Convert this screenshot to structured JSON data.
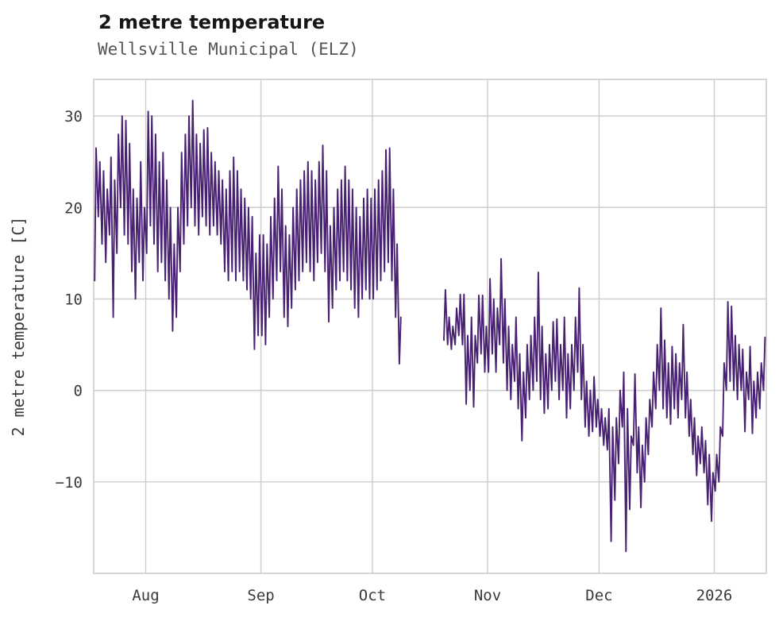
{
  "chart_data": {
    "type": "line",
    "title": "2 metre temperature",
    "subtitle": "Wellsville Municipal (ELZ)",
    "ylabel": "2 metre temperature [C]",
    "series_name": "2 metre temperature",
    "line_color": "#482173",
    "grid_color": "#cccccc",
    "axis_text_color": "#3a3a3a",
    "background_color": "#ffffff",
    "legend": "none",
    "grid": "on",
    "ylim": [
      -20,
      34
    ],
    "yticks": [
      {
        "label": "−10",
        "value": -10
      },
      {
        "label": "0",
        "value": 0
      },
      {
        "label": "10",
        "value": 10
      },
      {
        "label": "20",
        "value": 20
      },
      {
        "label": "30",
        "value": 30
      }
    ],
    "x_axis": {
      "start_date": "Jul 18",
      "end_date": "Jan 15",
      "total_days": 181,
      "ticks": [
        {
          "label": "Aug",
          "day": 14
        },
        {
          "label": "Sep",
          "day": 45
        },
        {
          "label": "Oct",
          "day": 75
        },
        {
          "label": "Nov",
          "day": 106
        },
        {
          "label": "Dec",
          "day": 136
        },
        {
          "label": "2026",
          "day": 167
        }
      ]
    },
    "daily_min_max": [
      [
        12,
        26.5
      ],
      [
        19,
        25
      ],
      [
        16,
        24
      ],
      [
        14,
        22
      ],
      [
        17,
        25.5
      ],
      [
        8,
        23
      ],
      [
        15,
        28
      ],
      [
        20,
        30
      ],
      [
        17,
        29.5
      ],
      [
        16,
        27
      ],
      [
        13,
        22
      ],
      [
        10,
        21
      ],
      [
        14,
        25
      ],
      [
        12,
        20
      ],
      [
        15,
        30.5
      ],
      [
        18,
        30
      ],
      [
        16,
        28
      ],
      [
        13,
        25
      ],
      [
        14,
        26
      ],
      [
        12,
        23
      ],
      [
        10,
        20
      ],
      [
        6.5,
        16
      ],
      [
        8,
        20
      ],
      [
        13,
        26
      ],
      [
        16,
        28
      ],
      [
        18,
        30
      ],
      [
        20,
        31.7
      ],
      [
        18,
        28
      ],
      [
        17,
        27
      ],
      [
        19,
        28.5
      ],
      [
        18,
        28.7
      ],
      [
        17,
        26
      ],
      [
        18,
        25
      ],
      [
        17,
        24
      ],
      [
        16,
        23
      ],
      [
        13,
        22
      ],
      [
        12,
        24
      ],
      [
        13,
        25.5
      ],
      [
        12,
        24
      ],
      [
        13,
        22
      ],
      [
        12,
        21
      ],
      [
        11,
        20
      ],
      [
        10,
        19
      ],
      [
        4.5,
        15
      ],
      [
        6,
        17
      ],
      [
        6,
        17
      ],
      [
        5,
        16
      ],
      [
        8,
        19
      ],
      [
        10,
        21
      ],
      [
        12,
        24.5
      ],
      [
        13,
        22
      ],
      [
        8,
        18
      ],
      [
        7,
        17
      ],
      [
        9,
        20
      ],
      [
        11,
        22
      ],
      [
        12,
        23
      ],
      [
        13,
        24
      ],
      [
        14,
        25
      ],
      [
        13,
        24
      ],
      [
        12,
        23
      ],
      [
        14,
        25
      ],
      [
        15,
        26.8
      ],
      [
        13,
        24
      ],
      [
        7.5,
        18
      ],
      [
        9,
        20
      ],
      [
        11,
        22
      ],
      [
        12,
        23
      ],
      [
        13,
        24.5
      ],
      [
        12,
        23
      ],
      [
        11,
        22
      ],
      [
        9,
        20
      ],
      [
        8,
        19
      ],
      [
        10,
        21
      ],
      [
        11,
        22
      ],
      [
        10,
        21
      ],
      [
        10,
        22
      ],
      [
        11,
        23
      ],
      [
        12,
        24
      ],
      [
        13,
        26.3
      ],
      [
        14,
        26.5
      ],
      [
        12,
        22
      ],
      [
        8,
        16
      ],
      [
        2.9,
        8
      ],
      null,
      null,
      null,
      null,
      null,
      null,
      null,
      null,
      null,
      null,
      null,
      [
        5.5,
        11
      ],
      [
        5,
        8
      ],
      [
        4.5,
        7
      ],
      [
        5,
        9
      ],
      [
        6,
        10.5
      ],
      [
        5,
        10.5
      ],
      [
        -1.5,
        6
      ],
      [
        0,
        8
      ],
      [
        -1.8,
        6
      ],
      [
        3,
        10.4
      ],
      [
        4,
        10.4
      ],
      [
        2,
        7
      ],
      [
        2,
        12.2
      ],
      [
        4,
        10
      ],
      [
        2,
        9
      ],
      [
        5,
        14.4
      ],
      [
        3,
        10
      ],
      [
        0,
        7
      ],
      [
        -1,
        5
      ],
      [
        1,
        8
      ],
      [
        -2,
        4
      ],
      [
        -5.5,
        2
      ],
      [
        -3,
        5
      ],
      [
        -1,
        6
      ],
      [
        0,
        8
      ],
      [
        1,
        12.9
      ],
      [
        -1,
        7
      ],
      [
        -2.5,
        4
      ],
      [
        -2,
        5
      ],
      [
        0,
        7.5
      ],
      [
        1,
        7.8
      ],
      [
        -1,
        5
      ],
      [
        0,
        8
      ],
      [
        -3,
        4
      ],
      [
        -2,
        5
      ],
      [
        0,
        8
      ],
      [
        2,
        11.2
      ],
      [
        -1,
        5
      ],
      [
        -4,
        1
      ],
      [
        -5,
        0
      ],
      [
        -4.5,
        1.5
      ],
      [
        -4,
        -1
      ],
      [
        -5,
        -2
      ],
      [
        -6,
        -3
      ],
      [
        -6.5,
        -2
      ],
      [
        -16.5,
        -4
      ],
      [
        -12,
        -3
      ],
      [
        -8,
        0
      ],
      [
        -4,
        2
      ],
      [
        -17.6,
        -2
      ],
      [
        -13,
        -5
      ],
      [
        -6,
        1.8
      ],
      [
        -9,
        -4
      ],
      [
        -12.8,
        -6
      ],
      [
        -10,
        -3
      ],
      [
        -7,
        -1
      ],
      [
        -4,
        2
      ],
      [
        -2,
        5
      ],
      [
        0,
        9
      ],
      [
        -2,
        5.5
      ],
      [
        -3,
        3
      ],
      [
        -3.7,
        4.8
      ],
      [
        -2,
        4
      ],
      [
        -3,
        3
      ],
      [
        -1,
        7.2
      ],
      [
        -3,
        2
      ],
      [
        -5,
        -1
      ],
      [
        -7,
        -3
      ],
      [
        -9.3,
        -5
      ],
      [
        -8,
        -4
      ],
      [
        -9,
        -5.5
      ],
      [
        -12.5,
        -7
      ],
      [
        -14.3,
        -9
      ],
      [
        -11,
        -7
      ],
      [
        -10,
        -4
      ],
      [
        -5,
        3
      ],
      [
        0,
        9.7
      ],
      [
        1,
        9.2
      ],
      [
        0,
        6
      ],
      [
        -1,
        5
      ],
      [
        0,
        4.5
      ],
      [
        -4.5,
        2
      ],
      [
        -1,
        4.8
      ],
      [
        -4.7,
        1
      ],
      [
        -3,
        2
      ],
      [
        -2,
        3
      ],
      [
        0,
        5.8
      ]
    ]
  }
}
